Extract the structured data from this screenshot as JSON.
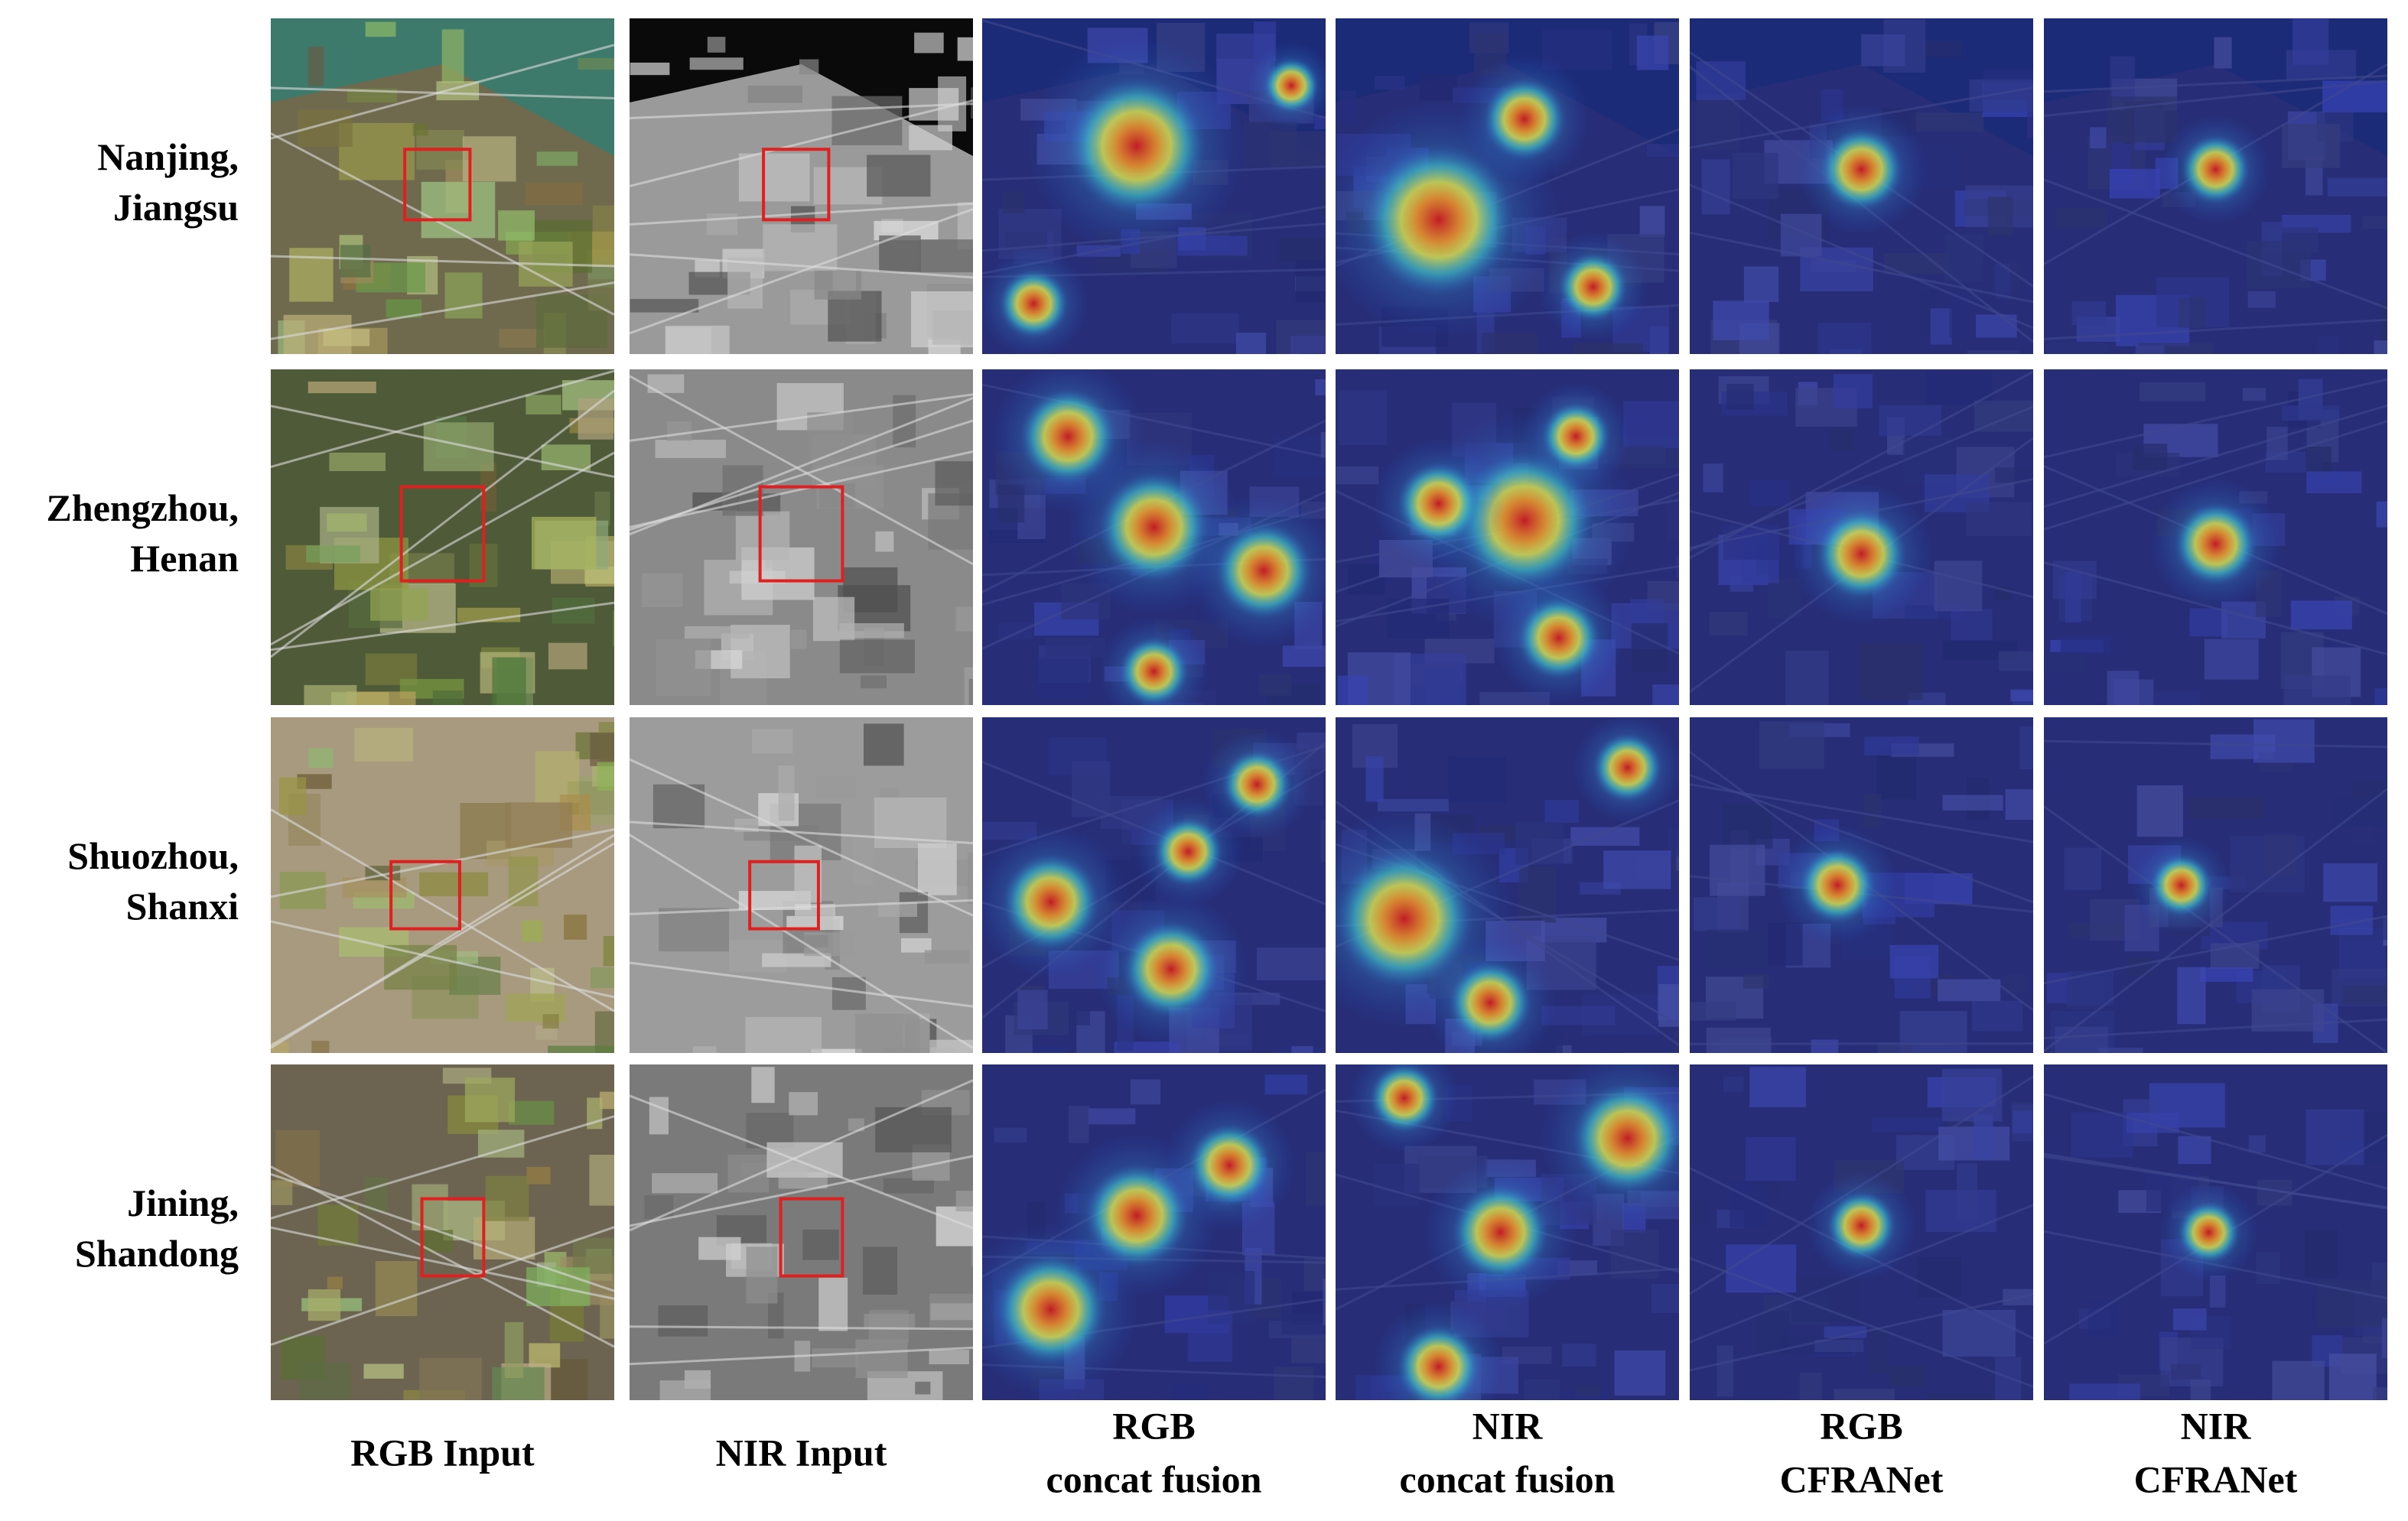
{
  "row_labels": [
    [
      "Nanjing,",
      "Jiangsu"
    ],
    [
      "Zhengzhou,",
      "Henan"
    ],
    [
      "Shuozhou,",
      "Shanxi"
    ],
    [
      "Jining,",
      "Shandong"
    ]
  ],
  "column_labels": [
    [
      "RGB Input"
    ],
    [
      "NIR Input"
    ],
    [
      "RGB",
      "concat fusion"
    ],
    [
      "NIR",
      "concat fusion"
    ],
    [
      "RGB",
      "CFRANet"
    ],
    [
      "NIR",
      "CFRANet"
    ]
  ]
}
